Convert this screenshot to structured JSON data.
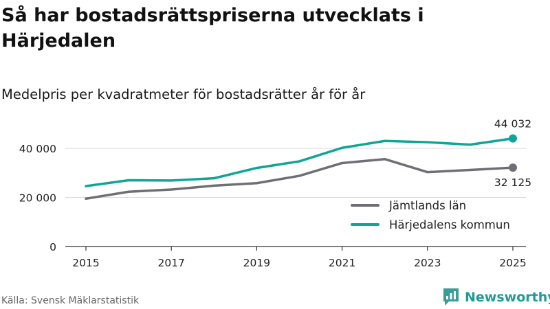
{
  "title": "Så har bostadsrättspriserna utvecklats i Härjedalen",
  "subtitle": "Medelpris per kvadratmeter för bostadsrätter år för år",
  "source": "Källa: Svensk Mäklarstatistik",
  "brand": "Newsworthy",
  "colors": {
    "jamtland": "#6e6e75",
    "harjedalen": "#10a595",
    "grid": "#d9d9d9",
    "axis": "#333333"
  },
  "chart_data": {
    "type": "line",
    "x": [
      2015,
      2016,
      2017,
      2018,
      2019,
      2020,
      2021,
      2022,
      2023,
      2024,
      2025
    ],
    "series": [
      {
        "name": "Jämtlands län",
        "values": [
          19500,
          22300,
          23200,
          24800,
          25800,
          28800,
          34000,
          35600,
          30300,
          31200,
          32125
        ]
      },
      {
        "name": "Härjedalens kommun",
        "values": [
          24600,
          27000,
          26900,
          27800,
          32000,
          34700,
          40200,
          43000,
          42500,
          41500,
          44032
        ]
      }
    ],
    "yticks": [
      0,
      20000,
      40000
    ],
    "ytick_labels": [
      "0",
      "20 000",
      "40 000"
    ],
    "xticks": [
      2015,
      2017,
      2019,
      2021,
      2023,
      2025
    ],
    "xtick_labels": [
      "2015",
      "2017",
      "2019",
      "2021",
      "2023",
      "2025"
    ],
    "ylim": [
      0,
      50000
    ],
    "annotations": {
      "harjedalen_last": "44 032",
      "jamtland_last": "32 125"
    },
    "legend_position": "bottom-right"
  }
}
